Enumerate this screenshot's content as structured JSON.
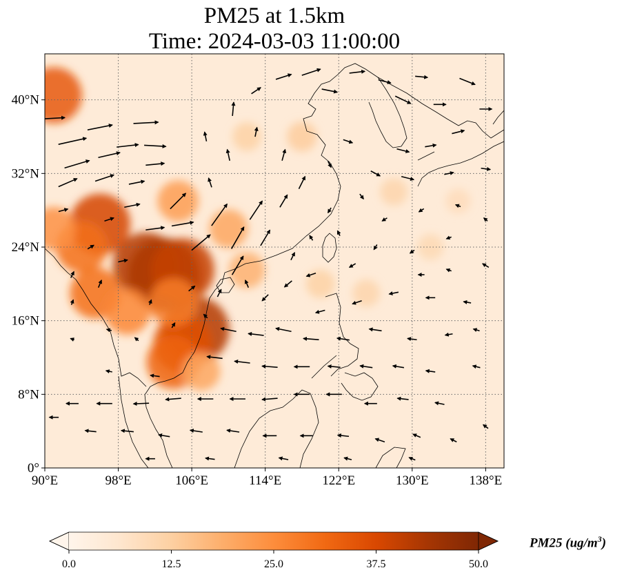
{
  "title": {
    "line1": "PM25 at 1.5km",
    "line2": "Time: 2024-03-03 11:00:00"
  },
  "map": {
    "lon_range": [
      90,
      140
    ],
    "lat_range": [
      0,
      45
    ],
    "lon_ticks": [
      {
        "value": 90,
        "label": "90°E"
      },
      {
        "value": 98,
        "label": "98°E"
      },
      {
        "value": 106,
        "label": "106°E"
      },
      {
        "value": 114,
        "label": "114°E"
      },
      {
        "value": 122,
        "label": "122°E"
      },
      {
        "value": 130,
        "label": "130°E"
      },
      {
        "value": 138,
        "label": "138°E"
      }
    ],
    "lat_ticks": [
      {
        "value": 0,
        "label": "0°"
      },
      {
        "value": 8,
        "label": "8°N"
      },
      {
        "value": 16,
        "label": "16°N"
      },
      {
        "value": 24,
        "label": "24°N"
      },
      {
        "value": 32,
        "label": "32°N"
      },
      {
        "value": 40,
        "label": "40°N"
      }
    ],
    "gridlines": true,
    "field_background_value": 4,
    "pm25_hotspots": [
      {
        "lon": 103,
        "lat": 21,
        "value": 48
      },
      {
        "lon": 101,
        "lat": 22,
        "value": 42
      },
      {
        "lon": 105,
        "lat": 21.5,
        "value": 40
      },
      {
        "lon": 106.5,
        "lat": 15,
        "value": 42
      },
      {
        "lon": 105,
        "lat": 13.5,
        "value": 36
      },
      {
        "lon": 104,
        "lat": 11.5,
        "value": 32
      },
      {
        "lon": 96,
        "lat": 26.5,
        "value": 38
      },
      {
        "lon": 94,
        "lat": 24,
        "value": 30
      },
      {
        "lon": 95.5,
        "lat": 19,
        "value": 30
      },
      {
        "lon": 99,
        "lat": 17,
        "value": 26
      },
      {
        "lon": 104,
        "lat": 18,
        "value": 28
      },
      {
        "lon": 91,
        "lat": 26,
        "value": 24
      },
      {
        "lon": 91,
        "lat": 40.5,
        "value": 34
      },
      {
        "lon": 104.5,
        "lat": 29,
        "value": 22
      },
      {
        "lon": 110,
        "lat": 26,
        "value": 20
      },
      {
        "lon": 112,
        "lat": 21.5,
        "value": 18
      },
      {
        "lon": 118,
        "lat": 36,
        "value": 13
      },
      {
        "lon": 112,
        "lat": 36,
        "value": 12
      },
      {
        "lon": 125,
        "lat": 19,
        "value": 11
      },
      {
        "lon": 120,
        "lat": 20,
        "value": 12
      },
      {
        "lon": 132,
        "lat": 24,
        "value": 10
      },
      {
        "lon": 128,
        "lat": 30,
        "value": 11
      },
      {
        "lon": 135,
        "lat": 29,
        "value": 9
      },
      {
        "lon": 107,
        "lat": 10.5,
        "value": 20
      }
    ],
    "wind_vectors": [
      {
        "lon": 91,
        "lat": 38,
        "u": 3.5,
        "v": 0.2
      },
      {
        "lon": 93,
        "lat": 35.5,
        "u": 4.5,
        "v": 1.0
      },
      {
        "lon": 93.5,
        "lat": 33,
        "u": 4,
        "v": 1.2
      },
      {
        "lon": 92.5,
        "lat": 31,
        "u": 3,
        "v": 1.3
      },
      {
        "lon": 96,
        "lat": 37,
        "u": 4,
        "v": 0.8
      },
      {
        "lon": 97,
        "lat": 34,
        "u": 3.5,
        "v": 0.8
      },
      {
        "lon": 96.5,
        "lat": 31.5,
        "u": 3,
        "v": 1.0
      },
      {
        "lon": 99,
        "lat": 35,
        "u": 3.5,
        "v": 0.4
      },
      {
        "lon": 101,
        "lat": 37.5,
        "u": 4,
        "v": 0.2
      },
      {
        "lon": 102,
        "lat": 35,
        "u": 3.5,
        "v": -0.2
      },
      {
        "lon": 102,
        "lat": 33,
        "u": 3,
        "v": 0.3
      },
      {
        "lon": 100,
        "lat": 31,
        "u": 2.5,
        "v": 0.5
      },
      {
        "lon": 99.5,
        "lat": 28.5,
        "u": 2.5,
        "v": 0.5
      },
      {
        "lon": 102,
        "lat": 26,
        "u": 3,
        "v": 0.4
      },
      {
        "lon": 105,
        "lat": 26.5,
        "u": 3.5,
        "v": 0.6
      },
      {
        "lon": 104.5,
        "lat": 29,
        "u": 2.5,
        "v": 2.5
      },
      {
        "lon": 107,
        "lat": 24.5,
        "u": 3,
        "v": 2.5
      },
      {
        "lon": 109,
        "lat": 27.5,
        "u": 2.5,
        "v": 3.5
      },
      {
        "lon": 111,
        "lat": 25,
        "u": 2,
        "v": 3.5
      },
      {
        "lon": 113,
        "lat": 28,
        "u": 2,
        "v": 3
      },
      {
        "lon": 111,
        "lat": 22,
        "u": 1.8,
        "v": 3
      },
      {
        "lon": 114,
        "lat": 25,
        "u": 1.5,
        "v": 2.5
      },
      {
        "lon": 116,
        "lat": 29,
        "u": 1.2,
        "v": 2
      },
      {
        "lon": 118,
        "lat": 31,
        "u": 1,
        "v": 2
      },
      {
        "lon": 116,
        "lat": 34,
        "u": 0.5,
        "v": 1.8
      },
      {
        "lon": 113,
        "lat": 36.5,
        "u": 0.3,
        "v": 1.5
      },
      {
        "lon": 110,
        "lat": 34,
        "u": -0.4,
        "v": 1.8
      },
      {
        "lon": 107.5,
        "lat": 36,
        "u": -0.3,
        "v": 1.5
      },
      {
        "lon": 108,
        "lat": 31,
        "u": -0.5,
        "v": 1.5
      },
      {
        "lon": 110.5,
        "lat": 39,
        "u": 0.2,
        "v": 2.2
      },
      {
        "lon": 113,
        "lat": 41,
        "u": 1.5,
        "v": 1
      },
      {
        "lon": 116,
        "lat": 42.5,
        "u": 2.5,
        "v": 0.8
      },
      {
        "lon": 119,
        "lat": 43,
        "u": 3,
        "v": 1
      },
      {
        "lon": 121,
        "lat": 41,
        "u": 2.5,
        "v": -0.5
      },
      {
        "lon": 124,
        "lat": 43,
        "u": 2.5,
        "v": 0.3
      },
      {
        "lon": 127,
        "lat": 42,
        "u": 2,
        "v": -0.5
      },
      {
        "lon": 129,
        "lat": 40,
        "u": 2.5,
        "v": -1.2
      },
      {
        "lon": 131,
        "lat": 42.5,
        "u": 2,
        "v": -0.2
      },
      {
        "lon": 133,
        "lat": 39.5,
        "u": 2,
        "v": 0
      },
      {
        "lon": 136,
        "lat": 42,
        "u": 2.5,
        "v": -1
      },
      {
        "lon": 138,
        "lat": 39,
        "u": 2,
        "v": 0
      },
      {
        "lon": 135,
        "lat": 36.5,
        "u": 2,
        "v": 0.5
      },
      {
        "lon": 132,
        "lat": 35,
        "u": 1.8,
        "v": 0.3
      },
      {
        "lon": 129,
        "lat": 34.5,
        "u": 2,
        "v": -0.5
      },
      {
        "lon": 126,
        "lat": 32,
        "u": 1.5,
        "v": -0.8
      },
      {
        "lon": 129.5,
        "lat": 31.5,
        "u": 2,
        "v": -0.5
      },
      {
        "lon": 134,
        "lat": 32,
        "u": 1.5,
        "v": 0.3
      },
      {
        "lon": 138,
        "lat": 32.5,
        "u": 1.5,
        "v": -0.2
      },
      {
        "lon": 123,
        "lat": 35.5,
        "u": 1.5,
        "v": -0.5
      },
      {
        "lon": 121,
        "lat": 33,
        "u": 0.5,
        "v": -1
      },
      {
        "lon": 124.5,
        "lat": 29.5,
        "u": 0.6,
        "v": -0.8
      },
      {
        "lon": 121,
        "lat": 28,
        "u": -0.5,
        "v": -0.8
      },
      {
        "lon": 127,
        "lat": 27,
        "u": -0.8,
        "v": -0.5
      },
      {
        "lon": 131,
        "lat": 28,
        "u": -0.8,
        "v": -0.5
      },
      {
        "lon": 135,
        "lat": 28.5,
        "u": -0.8,
        "v": 0.3
      },
      {
        "lon": 138,
        "lat": 27,
        "u": -0.6,
        "v": 0.5
      },
      {
        "lon": 134,
        "lat": 25,
        "u": -0.8,
        "v": -0.3
      },
      {
        "lon": 130,
        "lat": 23.5,
        "u": -0.7,
        "v": -0.5
      },
      {
        "lon": 126,
        "lat": 24,
        "u": -0.5,
        "v": -0.8
      },
      {
        "lon": 123.5,
        "lat": 22,
        "u": -1,
        "v": -0.6
      },
      {
        "lon": 119,
        "lat": 21,
        "u": -1.5,
        "v": -0.5
      },
      {
        "lon": 116.5,
        "lat": 20,
        "u": -1.2,
        "v": -1
      },
      {
        "lon": 114,
        "lat": 18.5,
        "u": -1,
        "v": -1
      },
      {
        "lon": 112,
        "lat": 20,
        "u": -0.5,
        "v": 1.2
      },
      {
        "lon": 120,
        "lat": 17,
        "u": -1.5,
        "v": -0.4
      },
      {
        "lon": 124,
        "lat": 18,
        "u": -1.5,
        "v": -0.5
      },
      {
        "lon": 128,
        "lat": 19,
        "u": -1.5,
        "v": -0.3
      },
      {
        "lon": 132,
        "lat": 18.5,
        "u": -1.5,
        "v": 0
      },
      {
        "lon": 136,
        "lat": 18,
        "u": -1.2,
        "v": 0.2
      },
      {
        "lon": 138,
        "lat": 22,
        "u": -1,
        "v": 0.6
      },
      {
        "lon": 134,
        "lat": 14.5,
        "u": -1.2,
        "v": -0.2
      },
      {
        "lon": 130,
        "lat": 14,
        "u": -1.5,
        "v": 0.2
      },
      {
        "lon": 126,
        "lat": 15,
        "u": -2,
        "v": 0.3
      },
      {
        "lon": 122.5,
        "lat": 14,
        "u": -2,
        "v": 0.3
      },
      {
        "lon": 119,
        "lat": 14,
        "u": -2.5,
        "v": 0.2
      },
      {
        "lon": 116,
        "lat": 15,
        "u": -2.5,
        "v": 0.5
      },
      {
        "lon": 113,
        "lat": 14.5,
        "u": -2.5,
        "v": 0.3
      },
      {
        "lon": 110,
        "lat": 15,
        "u": -2.5,
        "v": 0.5
      },
      {
        "lon": 108.5,
        "lat": 12,
        "u": -2.5,
        "v": 0.3
      },
      {
        "lon": 111.5,
        "lat": 11.5,
        "u": -2.5,
        "v": 0.3
      },
      {
        "lon": 114.5,
        "lat": 11,
        "u": -2.5,
        "v": 0.2
      },
      {
        "lon": 118,
        "lat": 11,
        "u": -2.5,
        "v": 0
      },
      {
        "lon": 121.5,
        "lat": 11,
        "u": -2,
        "v": 0.2
      },
      {
        "lon": 125,
        "lat": 11,
        "u": -2,
        "v": 0.3
      },
      {
        "lon": 128.5,
        "lat": 11,
        "u": -1.8,
        "v": 0.3
      },
      {
        "lon": 132,
        "lat": 10.5,
        "u": -1.5,
        "v": 0.2
      },
      {
        "lon": 137,
        "lat": 11,
        "u": -1.2,
        "v": 0.3
      },
      {
        "lon": 133,
        "lat": 7,
        "u": -1.5,
        "v": 0.3
      },
      {
        "lon": 129,
        "lat": 7.5,
        "u": -1.8,
        "v": 0.2
      },
      {
        "lon": 125.5,
        "lat": 7,
        "u": -2,
        "v": 0
      },
      {
        "lon": 121.5,
        "lat": 8,
        "u": -2.5,
        "v": 0
      },
      {
        "lon": 118,
        "lat": 8,
        "u": -2.5,
        "v": 0
      },
      {
        "lon": 114.5,
        "lat": 7.5,
        "u": -2.5,
        "v": -0.2
      },
      {
        "lon": 111,
        "lat": 7.5,
        "u": -2.5,
        "v": 0
      },
      {
        "lon": 107.5,
        "lat": 7.5,
        "u": -2.5,
        "v": 0
      },
      {
        "lon": 104,
        "lat": 7.5,
        "u": -2.5,
        "v": -0.2
      },
      {
        "lon": 100.5,
        "lat": 7,
        "u": -2.5,
        "v": -0.1
      },
      {
        "lon": 96.5,
        "lat": 7,
        "u": -2.5,
        "v": 0
      },
      {
        "lon": 93,
        "lat": 7,
        "u": -2,
        "v": 0
      },
      {
        "lon": 91,
        "lat": 5.5,
        "u": -1.5,
        "v": 0
      },
      {
        "lon": 95,
        "lat": 4,
        "u": -1.8,
        "v": 0.2
      },
      {
        "lon": 99,
        "lat": 4,
        "u": -2,
        "v": 0.2
      },
      {
        "lon": 103,
        "lat": 3.5,
        "u": -1.8,
        "v": 0.3
      },
      {
        "lon": 106.5,
        "lat": 4,
        "u": -2,
        "v": 0.3
      },
      {
        "lon": 110.5,
        "lat": 4,
        "u": -2,
        "v": 0.3
      },
      {
        "lon": 114.5,
        "lat": 3.5,
        "u": -2.2,
        "v": 0
      },
      {
        "lon": 118.5,
        "lat": 3.5,
        "u": -2,
        "v": 0
      },
      {
        "lon": 122.5,
        "lat": 3.5,
        "u": -1.8,
        "v": 0.2
      },
      {
        "lon": 126.5,
        "lat": 3,
        "u": -1.5,
        "v": 0.5
      },
      {
        "lon": 130.5,
        "lat": 3.5,
        "u": -1.2,
        "v": 0.5
      },
      {
        "lon": 134.5,
        "lat": 3,
        "u": -1,
        "v": 0.5
      },
      {
        "lon": 138,
        "lat": 4.5,
        "u": -0.8,
        "v": 0.6
      },
      {
        "lon": 101.5,
        "lat": 1,
        "u": -1.5,
        "v": 0
      },
      {
        "lon": 108,
        "lat": 1,
        "u": -1.5,
        "v": 0.2
      },
      {
        "lon": 116,
        "lat": 1,
        "u": -1.5,
        "v": 0.3
      },
      {
        "lon": 123,
        "lat": 1,
        "u": -1.2,
        "v": 0.3
      },
      {
        "lon": 130,
        "lat": 1,
        "u": -1,
        "v": 0.4
      },
      {
        "lon": 96,
        "lat": 20,
        "u": 0.5,
        "v": 1.2
      },
      {
        "lon": 98.5,
        "lat": 22.5,
        "u": 1.5,
        "v": 0.3
      },
      {
        "lon": 101.5,
        "lat": 18,
        "u": 0.3,
        "v": 0.8
      },
      {
        "lon": 104,
        "lat": 15.5,
        "u": 0.5,
        "v": 0.8
      },
      {
        "lon": 100,
        "lat": 14,
        "u": -0.6,
        "v": 0.5
      },
      {
        "lon": 97,
        "lat": 15,
        "u": -0.8,
        "v": 0.2
      },
      {
        "lon": 93,
        "lat": 14,
        "u": -0.6,
        "v": 0.2
      },
      {
        "lon": 93,
        "lat": 18,
        "u": 0.3,
        "v": 0.8
      },
      {
        "lon": 93,
        "lat": 21,
        "u": 0.5,
        "v": 1
      },
      {
        "lon": 95,
        "lat": 24,
        "u": 1,
        "v": 0.6
      },
      {
        "lon": 92,
        "lat": 28,
        "u": 1.5,
        "v": 0.4
      },
      {
        "lon": 97,
        "lat": 27,
        "u": 1.5,
        "v": 0.5
      },
      {
        "lon": 106,
        "lat": 19.5,
        "u": 1,
        "v": 0.8
      },
      {
        "lon": 109,
        "lat": 19,
        "u": 0.6,
        "v": 1.2
      },
      {
        "lon": 107.5,
        "lat": 16.5,
        "u": -0.6,
        "v": 0.6
      },
      {
        "lon": 102,
        "lat": 10,
        "u": -1.5,
        "v": 0.2
      },
      {
        "lon": 97,
        "lat": 10.5,
        "u": -1,
        "v": 0.2
      },
      {
        "lon": 131,
        "lat": 21,
        "u": -1,
        "v": 0
      },
      {
        "lon": 134,
        "lat": 21.5,
        "u": -0.8,
        "v": 0.3
      },
      {
        "lon": 137,
        "lat": 15,
        "u": -1,
        "v": 0.3
      },
      {
        "lon": 122,
        "lat": 25.5,
        "u": -0.4,
        "v": 0.8
      },
      {
        "lon": 119,
        "lat": 25,
        "u": -0.5,
        "v": 0.8
      },
      {
        "lon": 117,
        "lat": 23,
        "u": 0.6,
        "v": 1.2
      }
    ]
  },
  "colorbar": {
    "min": 0,
    "max": 50,
    "extend": "both",
    "colors": [
      "#fff5eb",
      "#fee6ce",
      "#fdd0a2",
      "#fdae6b",
      "#fd8d3c",
      "#f16913",
      "#d94801",
      "#a63603",
      "#7f2704"
    ],
    "ticks": [
      {
        "value": 0,
        "label": "0.0"
      },
      {
        "value": 12.5,
        "label": "12.5"
      },
      {
        "value": 25,
        "label": "25.0"
      },
      {
        "value": 37.5,
        "label": "37.5"
      },
      {
        "value": 50,
        "label": "50.0"
      }
    ],
    "label_main": "PM25 (ug/m",
    "label_sup": "3",
    "label_end": ")"
  }
}
